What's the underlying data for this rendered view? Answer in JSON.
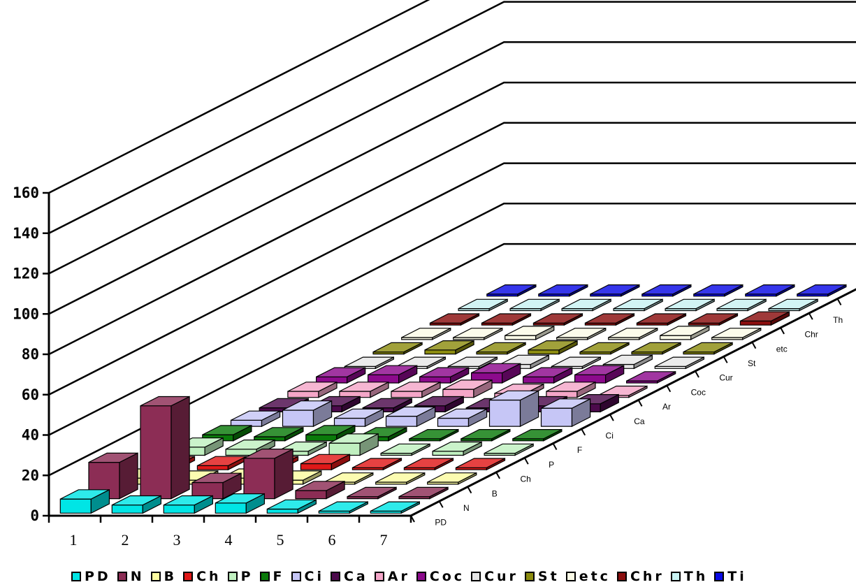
{
  "chart_data": {
    "type": "bar",
    "variant": "3d-column",
    "title": "",
    "xlabel": "",
    "ylabel": "",
    "ylim": [
      0,
      160
    ],
    "yticks": [
      "0",
      "20",
      "40",
      "60",
      "80",
      "100",
      "120",
      "140",
      "160"
    ],
    "grid": true,
    "legend_position": "bottom",
    "categories": [
      "1",
      "2",
      "3",
      "4",
      "5",
      "6",
      "7"
    ],
    "series": [
      {
        "name": "PD",
        "color": "#00e5e5",
        "values": [
          7,
          4,
          4,
          5,
          2,
          1,
          1
        ]
      },
      {
        "name": "N",
        "color": "#8c2d55",
        "values": [
          18,
          46,
          8,
          20,
          4,
          1,
          1
        ]
      },
      {
        "name": "B",
        "color": "#fbfba0",
        "values": [
          3,
          2,
          3,
          2,
          1,
          1,
          1
        ]
      },
      {
        "name": "Ch",
        "color": "#e01818",
        "values": [
          2,
          2,
          2,
          3,
          1,
          1,
          1
        ]
      },
      {
        "name": "P",
        "color": "#c0f0c0",
        "values": [
          4,
          3,
          2,
          6,
          1,
          2,
          1
        ]
      },
      {
        "name": "F",
        "color": "#0a7a0a",
        "values": [
          3,
          2,
          3,
          2,
          1,
          1,
          1
        ]
      },
      {
        "name": "Ci",
        "color": "#c6c6f6",
        "values": [
          3,
          8,
          4,
          5,
          4,
          13,
          9
        ]
      },
      {
        "name": "Ca",
        "color": "#4c0a4c",
        "values": [
          2,
          3,
          2,
          3,
          2,
          3,
          4
        ]
      },
      {
        "name": "Ar",
        "color": "#f4a6c8",
        "values": [
          3,
          3,
          3,
          4,
          2,
          3,
          1
        ]
      },
      {
        "name": "Coc",
        "color": "#8c0a8c",
        "values": [
          3,
          4,
          3,
          5,
          3,
          4,
          1
        ]
      },
      {
        "name": "Cur",
        "color": "#e6e6e6",
        "values": [
          1,
          1,
          1,
          2,
          1,
          2,
          1
        ]
      },
      {
        "name": "St",
        "color": "#8c8c10",
        "values": [
          1,
          2,
          1,
          2,
          1,
          1,
          1
        ]
      },
      {
        "name": "etc",
        "color": "#fafae6",
        "values": [
          1,
          1,
          2,
          1,
          1,
          2,
          1
        ]
      },
      {
        "name": "Chr",
        "color": "#8a0e0e",
        "values": [
          1,
          1,
          1,
          1,
          1,
          1,
          2
        ]
      },
      {
        "name": "Th",
        "color": "#c8f2f2",
        "values": [
          1,
          1,
          1,
          1,
          1,
          1,
          1
        ]
      },
      {
        "name": "Ti",
        "color": "#0a0ae6",
        "values": [
          1,
          1,
          1,
          1,
          1,
          1,
          1
        ]
      }
    ]
  }
}
